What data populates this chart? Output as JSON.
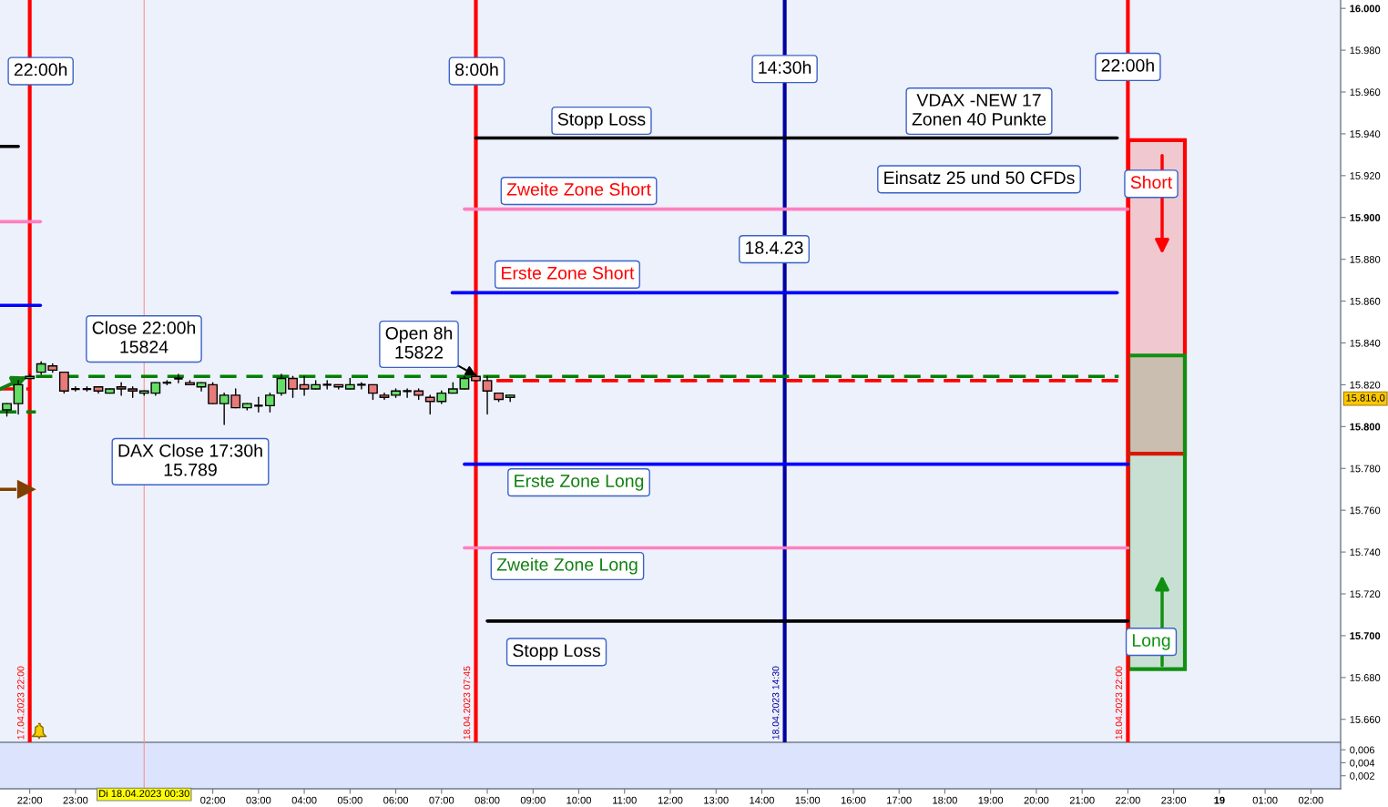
{
  "chart_data": [
    {
      "type": "candlestick",
      "x": [
        "2023-04-17T21:30",
        "2023-04-17T21:45",
        "2023-04-17T22:00",
        "2023-04-17T22:15",
        "2023-04-17T22:30",
        "2023-04-17T22:45",
        "2023-04-17T23:00",
        "2023-04-17T23:15",
        "2023-04-17T23:30",
        "2023-04-17T23:45",
        "2023-04-18T00:00",
        "2023-04-18T00:15",
        "2023-04-18T00:30",
        "2023-04-18T00:45",
        "2023-04-18T01:00",
        "2023-04-18T01:15",
        "2023-04-18T01:30",
        "2023-04-18T01:45",
        "2023-04-18T02:00",
        "2023-04-18T02:15",
        "2023-04-18T02:30",
        "2023-04-18T02:45",
        "2023-04-18T03:00",
        "2023-04-18T03:15",
        "2023-04-18T03:30",
        "2023-04-18T03:45",
        "2023-04-18T04:00",
        "2023-04-18T04:15",
        "2023-04-18T04:30",
        "2023-04-18T04:45",
        "2023-04-18T05:00",
        "2023-04-18T05:15",
        "2023-04-18T05:30",
        "2023-04-18T05:45",
        "2023-04-18T06:00",
        "2023-04-18T06:15",
        "2023-04-18T06:30",
        "2023-04-18T06:45",
        "2023-04-18T07:00",
        "2023-04-18T07:15",
        "2023-04-18T07:30",
        "2023-04-18T07:45",
        "2023-04-18T08:00",
        "2023-04-18T08:15",
        "2023-04-18T08:30"
      ],
      "ohlc": [
        [
          15808,
          15811,
          15805,
          15811
        ],
        [
          15811,
          15822,
          15806,
          15820
        ],
        [
          15823,
          15825,
          15823,
          15824
        ],
        [
          15826,
          15831,
          15825,
          15830
        ],
        [
          15829,
          15830,
          15826,
          15827
        ],
        [
          15826,
          15826,
          15816,
          15817
        ],
        [
          15818,
          15819,
          15817,
          15818
        ],
        [
          15818,
          15819,
          15817,
          15818
        ],
        [
          15819,
          15819,
          15816,
          15817
        ],
        [
          15816,
          15818,
          15816,
          15818
        ],
        [
          15819,
          15821,
          15815,
          15818
        ],
        [
          15818,
          15819,
          15814,
          15817
        ],
        [
          15816,
          15817,
          15815,
          15817
        ],
        [
          15816,
          15821,
          15815,
          15821
        ],
        [
          15821,
          15822,
          15820,
          15821
        ],
        [
          15823,
          15825,
          15821,
          15823
        ],
        [
          15821,
          15822,
          15820,
          15820
        ],
        [
          15819,
          15821,
          15817,
          15821
        ],
        [
          15820,
          15821,
          15811,
          15811
        ],
        [
          15811,
          15816,
          15801,
          15815
        ],
        [
          15815,
          15818,
          15809,
          15809
        ],
        [
          15809,
          15811,
          15808,
          15811
        ],
        [
          15810,
          15814,
          15807,
          15810
        ],
        [
          15810,
          15816,
          15807,
          15815
        ],
        [
          15816,
          15825,
          15815,
          15823
        ],
        [
          15823,
          15824,
          15814,
          15818
        ],
        [
          15820,
          15824,
          15815,
          15818
        ],
        [
          15818,
          15822,
          15818,
          15820
        ],
        [
          15820,
          15822,
          15818,
          15820
        ],
        [
          15820,
          15820,
          15818,
          15819
        ],
        [
          15818,
          15823,
          15818,
          15820
        ],
        [
          15820,
          15821,
          15818,
          15820
        ],
        [
          15820,
          15820,
          15813,
          15816
        ],
        [
          15815,
          15816,
          15813,
          15814
        ],
        [
          15815,
          15818,
          15814,
          15817
        ],
        [
          15817,
          15818,
          15814,
          15817
        ],
        [
          15817,
          15818,
          15813,
          15815
        ],
        [
          15814,
          15815,
          15806,
          15812
        ],
        [
          15812,
          15817,
          15811,
          15816
        ],
        [
          15816,
          15821,
          15816,
          15818
        ],
        [
          15818,
          15824,
          15818,
          15823
        ],
        [
          15824,
          15825,
          15822,
          15822
        ],
        [
          15822,
          15824,
          15806,
          15817
        ],
        [
          15816,
          15816,
          15812,
          15813
        ],
        [
          15814,
          15815,
          15812,
          15815
        ]
      ],
      "colors": [
        "#66dd66",
        "#66dd66",
        "#66dd66",
        "#66dd66",
        "#e87a7a",
        "#e87a7a",
        "#000000",
        "#000000",
        "#e87a7a",
        "#66dd66",
        "#e87a7a",
        "#e87a7a",
        "#66dd66",
        "#66dd66",
        "#000000",
        "#000000",
        "#e87a7a",
        "#66dd66",
        "#e87a7a",
        "#66dd66",
        "#e87a7a",
        "#66dd66",
        "#000000",
        "#66dd66",
        "#66dd66",
        "#e87a7a",
        "#e87a7a",
        "#66dd66",
        "#000000",
        "#e87a7a",
        "#66dd66",
        "#000000",
        "#e87a7a",
        "#e87a7a",
        "#66dd66",
        "#000000",
        "#e87a7a",
        "#e87a7a",
        "#66dd66",
        "#66dd66",
        "#66dd66",
        "#e87a7a",
        "#e87a7a",
        "#e87a7a",
        "#66dd66"
      ],
      "series": [
        {
          "type": "line",
          "name": "Stopp Loss",
          "color": "#000000",
          "x": [
            "2023-04-18T07:45",
            "2023-04-18T21:46"
          ],
          "values": [
            15938,
            15938
          ]
        },
        {
          "type": "line",
          "color": "#ff80c0",
          "x": [
            "2023-04-18T07:30",
            "2023-04-18T22:00"
          ],
          "values": [
            15904,
            15904
          ]
        },
        {
          "type": "line",
          "color": "#0000ff",
          "x": [
            "2023-04-18T07:14",
            "2023-04-18T21:46"
          ],
          "values": [
            15864,
            15864
          ]
        },
        {
          "type": "line",
          "color": "#0000ff",
          "x": [
            "2023-04-18T07:30",
            "2023-04-18T22:00"
          ],
          "values": [
            15782,
            15782
          ]
        },
        {
          "type": "line",
          "color": "#ff80c0",
          "x": [
            "2023-04-18T07:30",
            "2023-04-18T22:00"
          ],
          "values": [
            15742,
            15742
          ]
        },
        {
          "type": "line",
          "name": "Stopp Loss",
          "color": "#000000",
          "x": [
            "2023-04-18T08:00",
            "2023-04-18T22:00"
          ],
          "values": [
            15707,
            15707
          ]
        },
        {
          "type": "line",
          "color": "#008000",
          "line_style": "dashed",
          "x": [
            "2023-04-17T22:08",
            "2023-04-18T21:48"
          ],
          "values": [
            15824,
            15824
          ]
        },
        {
          "type": "line",
          "color": "#ff0000",
          "line_style": "dashed",
          "x": [
            "2023-04-18T08:12",
            "2023-04-18T21:57"
          ],
          "values": [
            15822,
            15822
          ]
        },
        {
          "type": "line",
          "color": "#000000",
          "x": [
            "2023-04-17T21:21",
            "2023-04-17T21:45"
          ],
          "values": [
            15934,
            15934
          ]
        },
        {
          "type": "line",
          "color": "#ff80c0",
          "x": [
            "2023-04-17T21:21",
            "2023-04-17T22:14"
          ],
          "values": [
            15898,
            15898
          ]
        },
        {
          "type": "line",
          "color": "#0000ff",
          "x": [
            "2023-04-17T21:21",
            "2023-04-17T22:14"
          ],
          "values": [
            15858,
            15858
          ]
        },
        {
          "type": "line",
          "color": "#008000",
          "line_style": "dashed",
          "x": [
            "2023-04-17T21:21",
            "2023-04-17T22:08"
          ],
          "values": [
            15807,
            15807
          ]
        },
        {
          "type": "line",
          "color": "#ff0000",
          "line_style": "dashed",
          "x": [
            "2023-04-17T21:21",
            "2023-04-17T21:58"
          ],
          "values": [
            15818,
            15818
          ]
        },
        {
          "type": "line",
          "color": "#804000",
          "line_style": "dashed",
          "marker": "triangle",
          "x": [
            "2023-04-17T21:21",
            "2023-04-17T21:56"
          ],
          "values": [
            15770,
            15770
          ]
        }
      ],
      "ref_lines": [
        {
          "axis": "x",
          "value": "2023-04-17T22:00",
          "label": "17.04.2023 22:00",
          "color": "#ff0000"
        },
        {
          "axis": "x",
          "value": "2023-04-18T00:30",
          "label": "Di 18.04.2023 00:30",
          "color": "#ff9090"
        },
        {
          "axis": "x",
          "value": "2023-04-18T07:45",
          "label": "18.04.2023 07:45",
          "color": "#ff0000"
        },
        {
          "axis": "x",
          "value": "2023-04-18T14:30",
          "label": "18.04.2023 14:30",
          "color": "#0000a0"
        },
        {
          "axis": "x",
          "value": "2023-04-18T22:00",
          "label": "18.04.2023 22:00",
          "color": "#ff0000"
        }
      ],
      "bands": [
        {
          "axis": "y",
          "from": 15787,
          "to": 15937,
          "label": "Short",
          "color": "#ff0000"
        },
        {
          "axis": "y",
          "from": 15684,
          "to": 15834,
          "label": "Long",
          "color": "#109010"
        }
      ],
      "annotations": [
        {
          "text": "22:00h",
          "x": "2023-04-17T22:00",
          "y": 15970
        },
        {
          "text": "8:00h",
          "x": "2023-04-18T07:45",
          "y": 15970
        },
        {
          "text": "14:30h",
          "x": "2023-04-18T14:30",
          "y": 15971
        },
        {
          "text": "22:00h",
          "x": "2023-04-18T22:00",
          "y": 15972
        },
        {
          "text": "Zweite Zone Short",
          "x": "2023-04-18T10:00",
          "y": 15904
        },
        {
          "text": "Erste Zone Short",
          "x": "2023-04-18T09:45",
          "y": 15864
        },
        {
          "text": "Erste Zone Long",
          "x": "2023-04-18T10:00",
          "y": 15782
        },
        {
          "text": "Zweite Zone Long",
          "x": "2023-04-18T09:45",
          "y": 15742
        },
        "Close 22:00h\n15824",
        "Open 8h\n15822",
        "DAX Close 17:30h\n15.789",
        "18.4.23",
        "VDAX -NEW 17\nZonen 40 Punkte",
        "Einsatz 25 und 50 CFDs",
        "15.816,0"
      ],
      "xlim": [
        "2023-04-17T21:21",
        "2023-04-19T02:39"
      ],
      "ylim": [
        15649,
        16004
      ],
      "yticks": [
        {
          "value": 15660,
          "label": "15.660"
        },
        {
          "value": 15680,
          "label": "15.680"
        },
        {
          "value": 15700,
          "label": "15.700"
        },
        {
          "value": 15720,
          "label": "15.720"
        },
        {
          "value": 15740,
          "label": "15.740"
        },
        {
          "value": 15760,
          "label": "15.760"
        },
        {
          "value": 15780,
          "label": "15.780"
        },
        {
          "value": 15800,
          "label": "15.800"
        },
        {
          "value": 15820,
          "label": "15.820"
        },
        {
          "value": 15840,
          "label": "15.840"
        },
        {
          "value": 15860,
          "label": "15.860"
        },
        {
          "value": 15880,
          "label": "15.880"
        },
        {
          "value": 15900,
          "label": "15.900"
        },
        {
          "value": 15920,
          "label": "15.920"
        },
        {
          "value": 15940,
          "label": "15.940"
        },
        {
          "value": 15960,
          "label": "15.960"
        },
        {
          "value": 15980,
          "label": "15.980"
        },
        {
          "value": 16000,
          "label": "16.000"
        }
      ],
      "tick_labels": "y"
    },
    {
      "type": "line",
      "xlim": [
        "2023-04-17T21:21",
        "2023-04-19T02:39"
      ],
      "ylim": [
        0,
        0.007
      ],
      "yticks": [
        {
          "value": 0.002,
          "label": "0,002"
        },
        {
          "value": 0.004,
          "label": "0,004"
        },
        {
          "value": 0.006,
          "label": "0,006"
        }
      ],
      "xticks": [
        {
          "value": "2023-04-17T22:00",
          "label": "22:00"
        },
        {
          "value": "2023-04-17T23:00",
          "label": "23:00"
        },
        {
          "value": "2023-04-18T00:00",
          "label": null
        },
        {
          "value": "2023-04-18T01:00",
          "label": null
        },
        {
          "value": "2023-04-18T02:00",
          "label": "02:00"
        },
        {
          "value": "2023-04-18T03:00",
          "label": "03:00"
        },
        {
          "value": "2023-04-18T04:00",
          "label": "04:00"
        },
        {
          "value": "2023-04-18T05:00",
          "label": "05:00"
        },
        {
          "value": "2023-04-18T06:00",
          "label": "06:00"
        },
        {
          "value": "2023-04-18T07:00",
          "label": "07:00"
        },
        {
          "value": "2023-04-18T08:00",
          "label": "08:00"
        },
        {
          "value": "2023-04-18T09:00",
          "label": "09:00"
        },
        {
          "value": "2023-04-18T10:00",
          "label": "10:00"
        },
        {
          "value": "2023-04-18T11:00",
          "label": "11:00"
        },
        {
          "value": "2023-04-18T12:00",
          "label": "12:00"
        },
        {
          "value": "2023-04-18T13:00",
          "label": "13:00"
        },
        {
          "value": "2023-04-18T14:00",
          "label": "14:00"
        },
        {
          "value": "2023-04-18T15:00",
          "label": "15:00"
        },
        {
          "value": "2023-04-18T16:00",
          "label": "16:00"
        },
        {
          "value": "2023-04-18T17:00",
          "label": "17:00"
        },
        {
          "value": "2023-04-18T18:00",
          "label": "18:00"
        },
        {
          "value": "2023-04-18T19:00",
          "label": "19:00"
        },
        {
          "value": "2023-04-18T20:00",
          "label": "20:00"
        },
        {
          "value": "2023-04-18T21:00",
          "label": "21:00"
        },
        {
          "value": "2023-04-18T22:00",
          "label": "22:00"
        },
        {
          "value": "2023-04-18T23:00",
          "label": "23:00"
        },
        {
          "value": "2023-04-19T00:00",
          "label": "19"
        },
        {
          "value": "2023-04-19T01:00",
          "label": "01:00"
        },
        {
          "value": "2023-04-19T02:00",
          "label": "02:00"
        }
      ]
    }
  ]
}
